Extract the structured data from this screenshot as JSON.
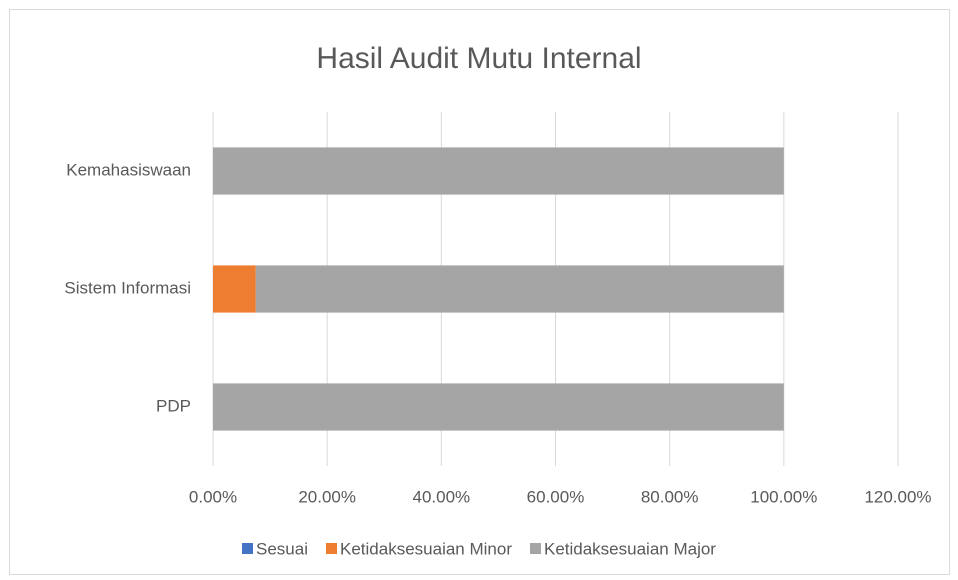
{
  "chart_data": {
    "type": "stacked-bar-horizontal",
    "title": "Hasil Audit Mutu Internal",
    "categories": [
      "PDP",
      "Sistem Informasi",
      "Kemahasiswaan"
    ],
    "series": [
      {
        "name": "Sesuai",
        "color": "#4472c4",
        "values": [
          0,
          0,
          0
        ]
      },
      {
        "name": "Ketidaksesuaian Minor",
        "color": "#ed7d31",
        "values": [
          0,
          7.5,
          0
        ]
      },
      {
        "name": "Ketidaksesuaian Major",
        "color": "#a5a5a5",
        "values": [
          100,
          92.5,
          100
        ]
      }
    ],
    "xlim": [
      0,
      120
    ],
    "xticks": [
      {
        "value": 0,
        "label": "0.00%"
      },
      {
        "value": 20,
        "label": "20.00%"
      },
      {
        "value": 40,
        "label": "40.00%"
      },
      {
        "value": 60,
        "label": "60.00%"
      },
      {
        "value": 80,
        "label": "80.00%"
      },
      {
        "value": 100,
        "label": "100.00%"
      },
      {
        "value": 120,
        "label": "120.00%"
      }
    ],
    "grid": true,
    "legend": "bottom"
  }
}
